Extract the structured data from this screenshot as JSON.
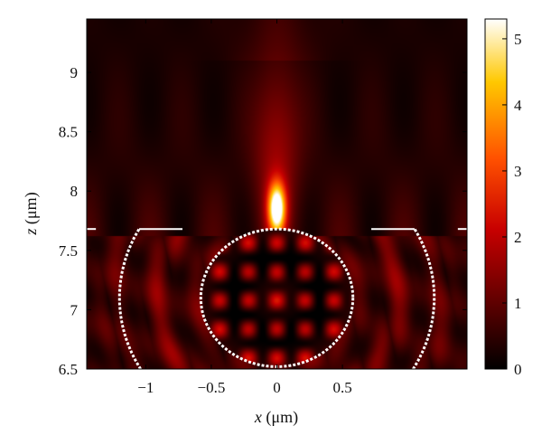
{
  "chart_data": {
    "type": "heatmap",
    "x_axis": {
      "label_var": "x",
      "label_unit": "(μm)",
      "ticks": [
        -1,
        -0.5,
        0,
        0.5
      ],
      "tick_labels": [
        "−1",
        "−0.5",
        "0",
        "0.5"
      ],
      "range": [
        -1.45,
        1.45
      ]
    },
    "y_axis": {
      "label_var": "z",
      "label_unit": "(μm)",
      "ticks": [
        6.5,
        7,
        7.5,
        8,
        8.5,
        9
      ],
      "tick_labels": [
        "6.5",
        "7",
        "7.5",
        "8",
        "8.5",
        "9"
      ],
      "range": [
        6.5,
        9.45
      ]
    },
    "colorbar": {
      "range": [
        0,
        5.3
      ],
      "ticks": [
        0,
        1,
        2,
        3,
        4,
        5
      ],
      "tick_labels": [
        "0",
        "1",
        "2",
        "3",
        "4",
        "5"
      ],
      "colormap": [
        "#000000",
        "#5a0000",
        "#c80000",
        "#ff5000",
        "#ffc800",
        "#ffffff"
      ]
    },
    "focal_spot": {
      "x": 0.0,
      "z": 7.85,
      "peak": 5.3
    },
    "overlay_outline_color": "#ffffff",
    "overlays": [
      {
        "shape": "circle",
        "center": [
          0,
          7.1
        ],
        "radius": 0.58
      },
      {
        "shape": "arc",
        "center": [
          0,
          7.1
        ],
        "radius": 1.2,
        "side": "left",
        "z_range": [
          6.5,
          7.68
        ]
      },
      {
        "shape": "arc",
        "center": [
          0,
          7.1
        ],
        "radius": 1.2,
        "side": "right",
        "z_range": [
          6.5,
          7.68
        ]
      },
      {
        "shape": "arc",
        "center": [
          0,
          7.1
        ],
        "radius": 1.72,
        "side": "left",
        "z_range": [
          6.5,
          7.68
        ]
      },
      {
        "shape": "arc",
        "center": [
          0,
          7.1
        ],
        "radius": 1.72,
        "side": "right",
        "z_range": [
          6.5,
          7.68
        ]
      },
      {
        "shape": "line",
        "from": [
          -1.45,
          7.68
        ],
        "to": [
          -1.38,
          7.68
        ]
      },
      {
        "shape": "line",
        "from": [
          -1.05,
          7.68
        ],
        "to": [
          -0.72,
          7.68
        ]
      },
      {
        "shape": "line",
        "from": [
          0.72,
          7.68
        ],
        "to": [
          1.05,
          7.68
        ]
      },
      {
        "shape": "line",
        "from": [
          1.38,
          7.68
        ],
        "to": [
          1.45,
          7.68
        ]
      }
    ]
  }
}
